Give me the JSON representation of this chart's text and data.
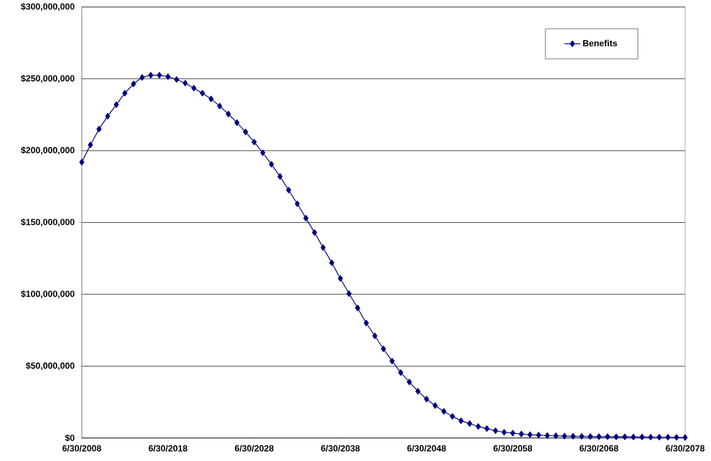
{
  "chart_data": {
    "type": "line",
    "categories": [
      "6/30/2008",
      null,
      null,
      null,
      null,
      null,
      null,
      null,
      null,
      null,
      "6/30/2018",
      null,
      null,
      null,
      null,
      null,
      null,
      null,
      null,
      null,
      "6/30/2028",
      null,
      null,
      null,
      null,
      null,
      null,
      null,
      null,
      null,
      "6/30/2038",
      null,
      null,
      null,
      null,
      null,
      null,
      null,
      null,
      null,
      "6/30/2048",
      null,
      null,
      null,
      null,
      null,
      null,
      null,
      null,
      null,
      "6/30/2058",
      null,
      null,
      null,
      null,
      null,
      null,
      null,
      null,
      null,
      "6/30/2068",
      null,
      null,
      null,
      null,
      null,
      null,
      null,
      null,
      null,
      "6/30/2078"
    ],
    "series": [
      {
        "name": "Benefits",
        "color": "#000080",
        "values": [
          192000000,
          204000000,
          215000000,
          224000000,
          232000000,
          240000000,
          246500000,
          251000000,
          252500000,
          252500000,
          251500000,
          249500000,
          247000000,
          243500000,
          240000000,
          236000000,
          231000000,
          225500000,
          219500000,
          213000000,
          206000000,
          198500000,
          190500000,
          182000000,
          172500000,
          163000000,
          153000000,
          143000000,
          132500000,
          122000000,
          111000000,
          100500000,
          90500000,
          80000000,
          71000000,
          62000000,
          53500000,
          45500000,
          39000000,
          32500000,
          27000000,
          22500000,
          18500000,
          15000000,
          12000000,
          10000000,
          8000000,
          6500000,
          5000000,
          4000000,
          3300000,
          2700000,
          2200000,
          2000000,
          1700000,
          1500000,
          1300000,
          1200000,
          1100000,
          1000000,
          900000,
          900000,
          800000,
          800000,
          700000,
          700000,
          600000,
          500000,
          500000,
          400000,
          300000
        ]
      }
    ],
    "ylim": [
      0,
      300000000
    ],
    "yticks": [
      {
        "value": 0,
        "label": "$0"
      },
      {
        "value": 50000000,
        "label": "$50,000,000"
      },
      {
        "value": 100000000,
        "label": "$100,000,000"
      },
      {
        "value": 150000000,
        "label": "$150,000,000"
      },
      {
        "value": 200000000,
        "label": "$200,000,000"
      },
      {
        "value": 250000000,
        "label": "$250,000,000"
      },
      {
        "value": 300000000,
        "label": "$300,000,000"
      }
    ],
    "grid": "y",
    "legend": "top right",
    "marker": "diamond",
    "line_style": "solid"
  }
}
